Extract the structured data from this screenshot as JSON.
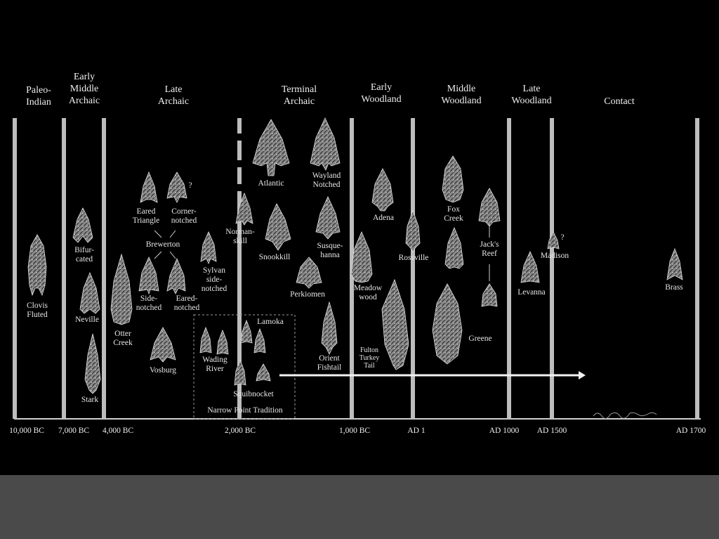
{
  "periods": [
    {
      "id": "paleo",
      "text": "Paleo-\nIndian"
    },
    {
      "id": "early-middle-archaic",
      "text": "Early\nMiddle\nArchaic"
    },
    {
      "id": "late-archaic",
      "text": "Late\nArchaic"
    },
    {
      "id": "terminal-archaic",
      "text": "Terminal\nArchaic"
    },
    {
      "id": "early-woodland",
      "text": "Early\nWoodland"
    },
    {
      "id": "middle-woodland",
      "text": "Middle\nWoodland"
    },
    {
      "id": "late-woodland",
      "text": "Late\nWoodland"
    },
    {
      "id": "contact",
      "text": "Contact"
    }
  ],
  "dates": [
    "10,000 BC",
    "7,000 BC",
    "4,000 BC",
    "2,000 BC",
    "1,000 BC",
    "AD 1",
    "AD 1000",
    "AD 1500",
    "AD 1700"
  ],
  "points": [
    {
      "id": "clovis",
      "text": "Clovis\nFluted"
    },
    {
      "id": "bifurcated",
      "text": "Bifur-\ncated"
    },
    {
      "id": "neville",
      "text": "Neville"
    },
    {
      "id": "stark",
      "text": "Stark"
    },
    {
      "id": "otter-creek",
      "text": "Otter\nCreek"
    },
    {
      "id": "eared-triangle",
      "text": "Eared\nTriangle"
    },
    {
      "id": "corner-notched",
      "text": "Corner-\nnotched"
    },
    {
      "id": "brewerton",
      "text": "Brewerton"
    },
    {
      "id": "side-notched",
      "text": "Side-\nnotched"
    },
    {
      "id": "eared-notched",
      "text": "Eared-\nnotched"
    },
    {
      "id": "sylvan",
      "text": "Sylvan\nside-\nnotched"
    },
    {
      "id": "vosburg",
      "text": "Vosburg"
    },
    {
      "id": "normanskill",
      "text": "Norman-\nskill"
    },
    {
      "id": "lamoka",
      "text": "Lamoka"
    },
    {
      "id": "wading-river",
      "text": "Wading\nRiver"
    },
    {
      "id": "squibnocket",
      "text": "Squibnocket"
    },
    {
      "id": "narrow-point",
      "text": "Narrow Point Tradition"
    },
    {
      "id": "atlantic",
      "text": "Atlantic"
    },
    {
      "id": "wayland",
      "text": "Wayland\nNotched"
    },
    {
      "id": "snookkill",
      "text": "Snookkill"
    },
    {
      "id": "susquehanna",
      "text": "Susque-\nhanna"
    },
    {
      "id": "perkiomen",
      "text": "Perkiomen"
    },
    {
      "id": "orient",
      "text": "Orient\nFishtail"
    },
    {
      "id": "adena",
      "text": "Adena"
    },
    {
      "id": "meadowood",
      "text": "Meadow\nwood"
    },
    {
      "id": "fulton",
      "text": "Fulton\nTurkey\nTail"
    },
    {
      "id": "rossville",
      "text": "Rossville"
    },
    {
      "id": "fox-creek",
      "text": "Fox\nCreek"
    },
    {
      "id": "jacks-reef",
      "text": "Jack's\nReef"
    },
    {
      "id": "greene",
      "text": "Greene"
    },
    {
      "id": "levanna",
      "text": "Levanna"
    },
    {
      "id": "madison",
      "text": "Madison"
    },
    {
      "id": "question1",
      "text": "?"
    },
    {
      "id": "question2",
      "text": "?"
    },
    {
      "id": "brass",
      "text": "Brass"
    }
  ]
}
